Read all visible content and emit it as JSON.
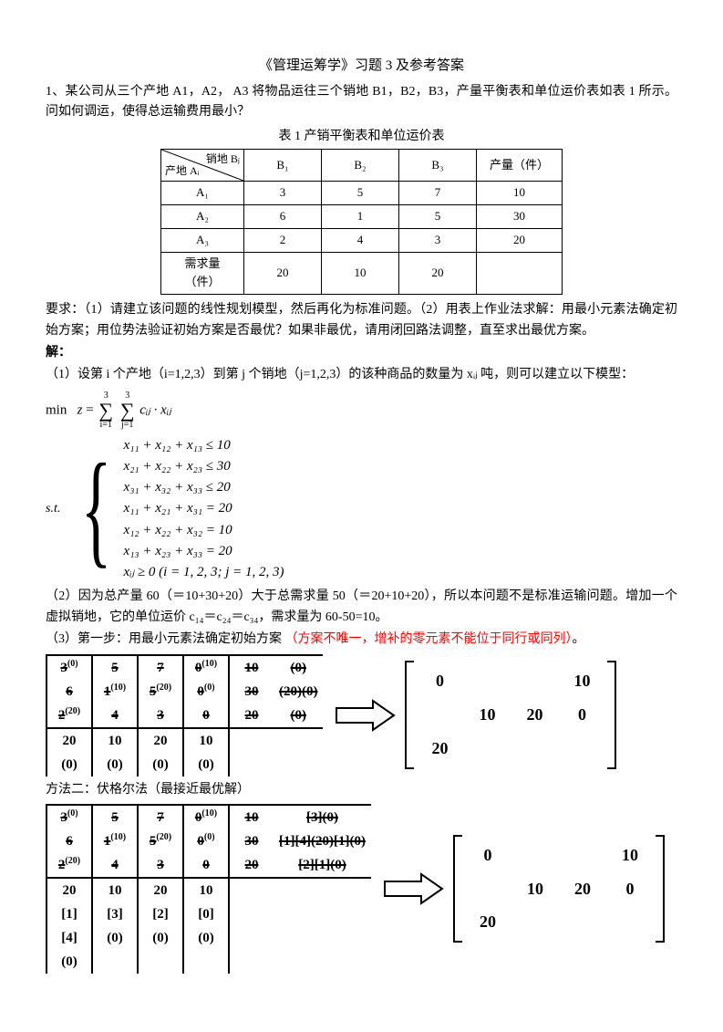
{
  "title": "《管理运筹学》习题 3 及参考答案",
  "q1_intro": "1、某公司从三个产地 A1，A2， A3 将物品运往三个销地 B1，B2，B3，产量平衡表和单位运价表如表 1 所示。问如何调运，使得总运输费用最小？",
  "table_caption": "表 1   产销平衡表和单位运价表",
  "table": {
    "diag_top": "销地 Bⱼ",
    "diag_bottom": "产地 Aᵢ",
    "cols": [
      "B₁",
      "B₂",
      "B₃",
      "产量（件）"
    ],
    "rows": [
      {
        "label": "A₁",
        "cells": [
          "3",
          "5",
          "7",
          "10"
        ]
      },
      {
        "label": "A₂",
        "cells": [
          "6",
          "1",
          "5",
          "30"
        ]
      },
      {
        "label": "A₃",
        "cells": [
          "2",
          "4",
          "3",
          "20"
        ]
      },
      {
        "label": "需求量（件）",
        "cells": [
          "20",
          "10",
          "20",
          ""
        ]
      }
    ]
  },
  "req": "要求：（1）请建立该问题的线性规划模型，然后再化为标准问题。（2）用表上作业法求解：用最小元素法确定初始方案；用位势法验证初始方案是否最优？如果非最优，请用闭回路法调整，直至求出最优方案。",
  "ans_label": "解：",
  "p1": "（1）设第 i 个产地（i=1,2,3）到第 j 个销地（j=1,2,3）的该种商品的数量为 xᵢⱼ 吨，则可以建立以下模型：",
  "obj_prefix": "min",
  "obj_body_z": "z",
  "obj_eq": "=",
  "sum1_top": "3",
  "sum1_bot": "i=1",
  "sum2_top": "3",
  "sum2_bot": "j=1",
  "obj_tail": "cᵢⱼ · xᵢⱼ",
  "st_label": "s.t.",
  "constraints": [
    "x₁₁ + x₁₂ + x₁₃ ≤ 10",
    "x₂₁ + x₂₂ + x₂₃ ≤ 30",
    "x₃₁ + x₃₂ + x₃₃ ≤ 20",
    "x₁₁ + x₂₁ + x₃₁ = 20",
    "x₁₂ + x₂₂ + x₃₂ = 10",
    "x₁₃ + x₂₃ + x₃₃ = 20",
    "xᵢⱼ ≥ 0 (i = 1, 2, 3; j = 1, 2, 3)"
  ],
  "p2": "（2）因为总产量 60（＝10+30+20）大于总需求量 50（＝20+10+20），所以本问题不是标准运输问题。增加一个虚拟销地，它的单位运价 c₁₄＝c₂₄＝c₃₄，需求量为 60-50=10。",
  "p3_a": "（3）第一步：用最小元素法确定初始方案",
  "p3_b": "（方案不唯一，增补的零元素不能位于同行或同列）",
  "tab1": {
    "main": [
      [
        "3",
        "5",
        "7",
        "0",
        "10",
        "(0)"
      ],
      [
        "6",
        "1",
        "5",
        "0",
        "30",
        "(20)(0)"
      ],
      [
        "2",
        "4",
        "3",
        "0",
        "20",
        "(0)"
      ]
    ],
    "main_sup": [
      [
        "(0)",
        "",
        "",
        "(10)",
        "",
        ""
      ],
      [
        "",
        "(10)",
        "(20)",
        "(0)",
        "",
        ""
      ],
      [
        "(20)",
        "",
        "",
        "",
        "",
        ""
      ]
    ],
    "strike_col": [
      true,
      true,
      true,
      true,
      false,
      false
    ],
    "strike_row": [
      true,
      true,
      true
    ],
    "bottom": [
      [
        "20",
        "10",
        "20",
        "10"
      ],
      [
        "(0)",
        "(0)",
        "(0)",
        "(0)"
      ]
    ]
  },
  "mat1": [
    [
      "0",
      "",
      "",
      "10"
    ],
    [
      "",
      "10",
      "20",
      "0"
    ],
    [
      "20",
      "",
      "",
      ""
    ]
  ],
  "method2_label": "方法二：伏格尔法（最接近最优解）",
  "tab2": {
    "main": [
      [
        "3",
        "5",
        "7",
        "0",
        "10",
        "[3](0)"
      ],
      [
        "6",
        "1",
        "5",
        "0",
        "30",
        "[1][4](20)[1](0)"
      ],
      [
        "2",
        "4",
        "3",
        "0",
        "20",
        "[2][1](0)"
      ]
    ],
    "main_sup": [
      [
        "(0)",
        "",
        "",
        "(10)",
        "",
        ""
      ],
      [
        "",
        "(10)",
        "(20)",
        "(0)",
        "",
        ""
      ],
      [
        "(20)",
        "",
        "",
        "",
        "",
        ""
      ]
    ],
    "bottom": [
      [
        "20",
        "10",
        "20",
        "10"
      ],
      [
        "[1]",
        "[3]",
        "[2]",
        "[0]"
      ],
      [
        "[4]",
        "(0)",
        "(0)",
        "(0)"
      ],
      [
        "(0)",
        "",
        "",
        ""
      ]
    ]
  },
  "mat2": [
    [
      "0",
      "",
      "",
      "10"
    ],
    [
      "",
      "10",
      "20",
      "0"
    ],
    [
      "20",
      "",
      "",
      ""
    ]
  ],
  "colors": {
    "red": "#ff0000",
    "black": "#000000",
    "bg": "#ffffff"
  }
}
